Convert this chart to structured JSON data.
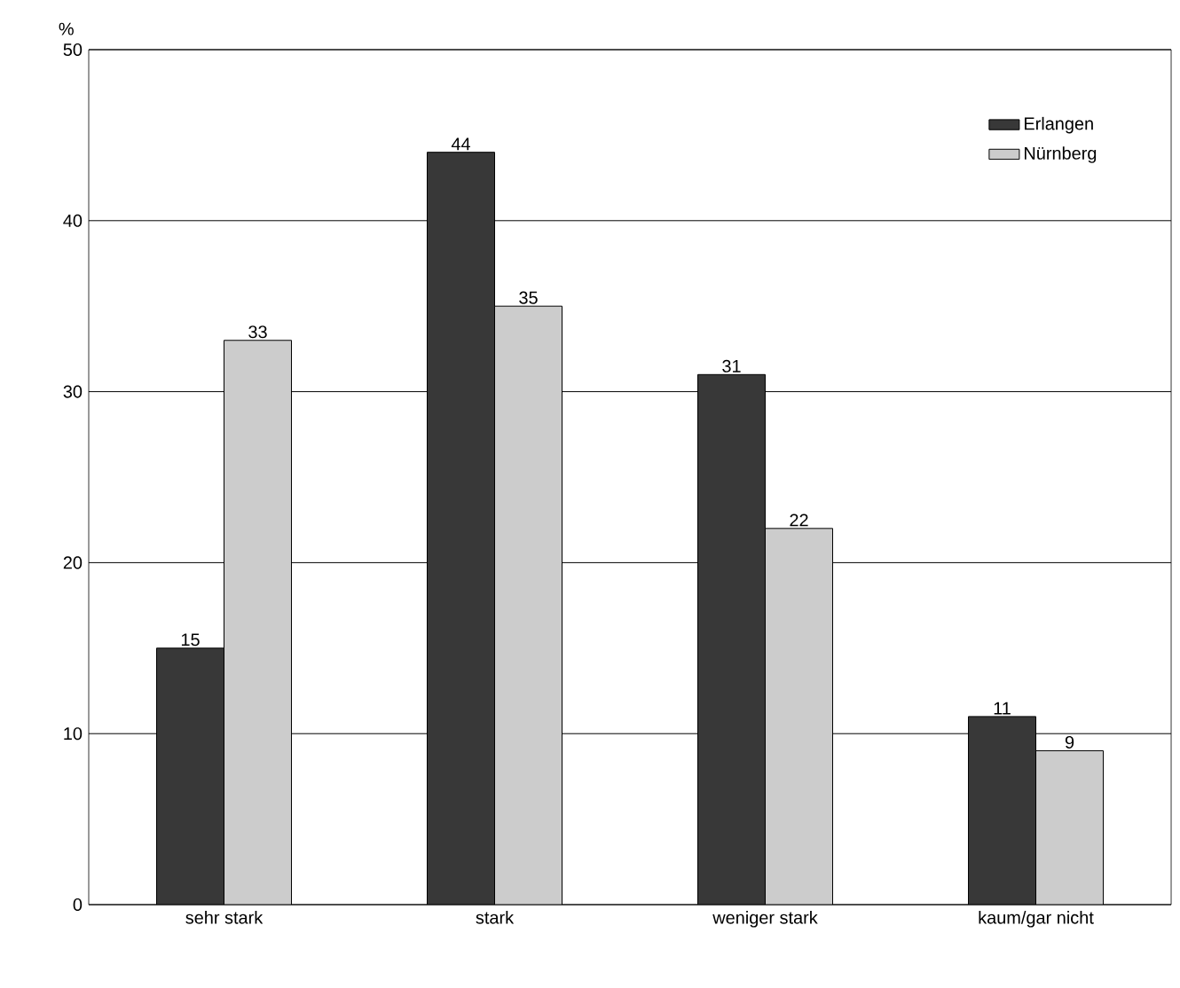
{
  "chart_data": {
    "type": "bar",
    "ylabel": "%",
    "categories": [
      "sehr stark",
      "stark",
      "weniger stark",
      "kaum/gar nicht"
    ],
    "series": [
      {
        "name": "Erlangen",
        "color": "#383838",
        "values": [
          15,
          44,
          31,
          11
        ]
      },
      {
        "name": "Nürnberg",
        "color": "#cccccc",
        "values": [
          33,
          35,
          22,
          9
        ]
      }
    ],
    "ylim": [
      0,
      50
    ],
    "yticks": [
      0,
      10,
      20,
      30,
      40,
      50
    ],
    "grid": "y",
    "legend": "top right",
    "data_labels": true
  }
}
